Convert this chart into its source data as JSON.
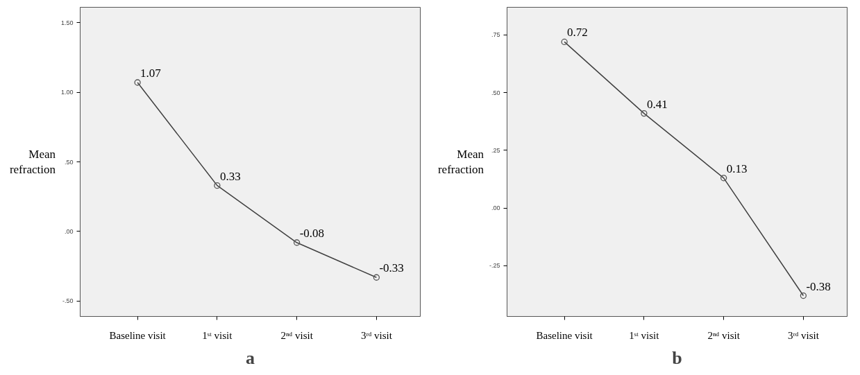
{
  "chart_data": [
    {
      "type": "line",
      "title": "a",
      "ylabel": "Mean refraction",
      "categories": [
        "Baseline visit",
        "1ˢᵗ visit",
        "2ⁿᵈ visit",
        "3ʳᵈ visit"
      ],
      "series": [
        {
          "color": "#404040",
          "values": [
            1.07,
            0.33,
            -0.08,
            -0.33
          ]
        }
      ],
      "ylim": [
        -0.61,
        1.61
      ],
      "yticks": [
        {
          "value": -0.5,
          "label": "-.50"
        },
        {
          "value": 0,
          "label": ".00"
        },
        {
          "value": 0.5,
          "label": ".50"
        },
        {
          "value": 1.0,
          "label": "1.00"
        },
        {
          "value": 1.5,
          "label": "1.50"
        }
      ],
      "data_labels": true,
      "marker": "circle",
      "line_style": "solid",
      "grid": false
    },
    {
      "type": "line",
      "title": "b",
      "ylabel": "Mean refraction",
      "categories": [
        "Baseline visit",
        "1ˢᵗ visit",
        "2ⁿᵈ visit",
        "3ʳᵈ visit"
      ],
      "series": [
        {
          "color": "#404040",
          "values": [
            0.72,
            0.41,
            0.13,
            -0.38
          ]
        }
      ],
      "ylim": [
        -0.47,
        0.87
      ],
      "yticks": [
        {
          "value": -0.25,
          "label": "-.25"
        },
        {
          "value": 0,
          "label": ".00"
        },
        {
          "value": 0.25,
          "label": ".25"
        },
        {
          "value": 0.5,
          "label": ".50"
        },
        {
          "value": 0.75,
          "label": ".75"
        }
      ],
      "data_labels": true,
      "marker": "circle",
      "line_style": "solid",
      "grid": false
    }
  ]
}
